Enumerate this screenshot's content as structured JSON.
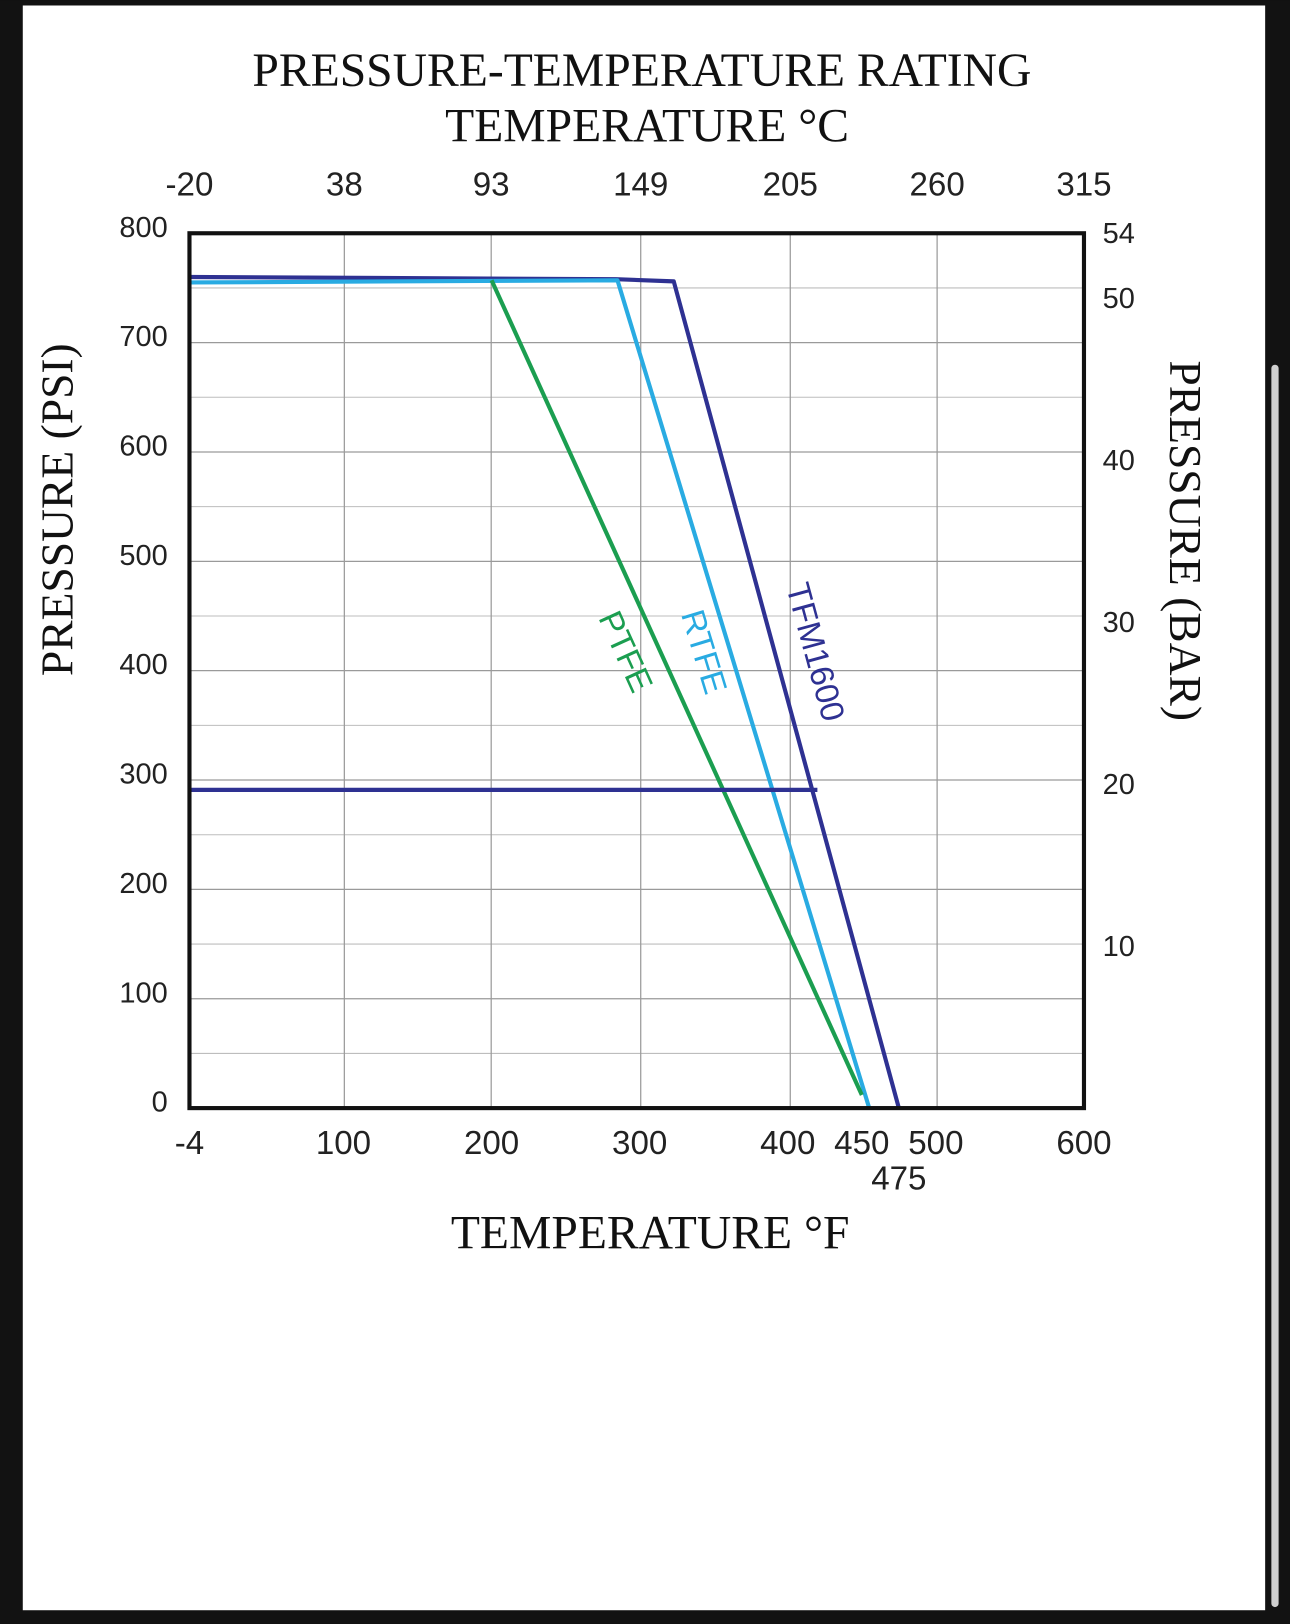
{
  "chart_data": {
    "type": "line",
    "title": "PRESSURE-TEMPERATURE RATING",
    "x2_label": "TEMPERATURE °C",
    "x_label": "TEMPERATURE °F",
    "y_label": "PRESSURE (PSI)",
    "y2_label": "PRESSURE (BAR)",
    "xlim": [
      -4,
      600
    ],
    "xticks": [
      -4,
      100,
      200,
      300,
      400,
      450,
      475,
      500,
      600
    ],
    "x2lim": [
      -20,
      315
    ],
    "x2ticks": [
      -20,
      38,
      93,
      149,
      205,
      260,
      315
    ],
    "ylim": [
      0,
      800
    ],
    "yticks": [
      0,
      100,
      200,
      300,
      400,
      500,
      600,
      700,
      800
    ],
    "yminor": [
      50,
      150,
      250,
      350,
      450,
      550,
      650,
      750
    ],
    "y2lim": [
      0,
      54
    ],
    "y2ticks": [
      10,
      20,
      30,
      40,
      50,
      54
    ],
    "grid": true,
    "series": [
      {
        "name": "TFM1600",
        "color": "#2e3192",
        "x": [
          -4,
          284,
          323,
          475
        ],
        "values": [
          760,
          758,
          756,
          0
        ]
      },
      {
        "name": "RTFE",
        "color": "#29abe2",
        "x": [
          -4,
          285,
          455
        ],
        "values": [
          755,
          757,
          0
        ]
      },
      {
        "name": "PTFE",
        "color": "#1b9e50",
        "x": [
          200,
          450
        ],
        "values": [
          757,
          12
        ]
      },
      {
        "color": "#2e3192",
        "x": [
          -4,
          420
        ],
        "values": [
          291,
          291
        ]
      }
    ]
  }
}
